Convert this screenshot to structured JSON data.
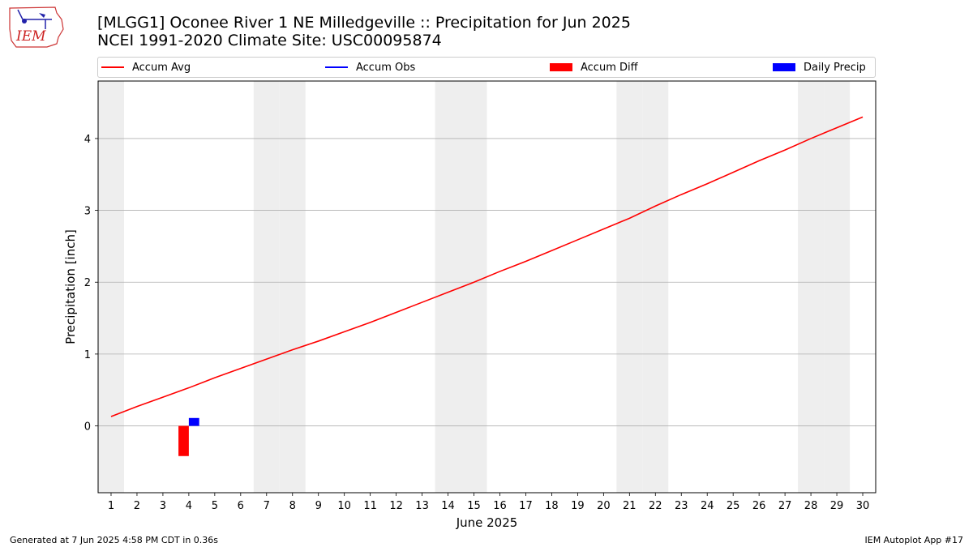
{
  "header": {
    "title_line1": "[MLGG1] Oconee River 1 NE Milledgeville :: Precipitation for Jun 2025",
    "title_line2": "NCEI 1991-2020 Climate Site: USC00095874"
  },
  "logo": {
    "text": "IEM"
  },
  "footer": {
    "generated": "Generated at 7 Jun 2025 4:58 PM CDT in 0.36s",
    "app": "IEM Autoplot App #17"
  },
  "chart_data": {
    "type": "line",
    "xlabel": "June 2025",
    "ylabel": "Precipitation [inch]",
    "x": [
      1,
      2,
      3,
      4,
      5,
      6,
      7,
      8,
      9,
      10,
      11,
      12,
      13,
      14,
      15,
      16,
      17,
      18,
      19,
      20,
      21,
      22,
      23,
      24,
      25,
      26,
      27,
      28,
      29,
      30
    ],
    "xlim": [
      0.5,
      30.5
    ],
    "ylim": [
      -0.93,
      4.8
    ],
    "yticks": [
      0,
      1,
      2,
      3,
      4
    ],
    "grid": "y",
    "legend_position": "top",
    "weekend_shading_days": [
      1,
      7,
      8,
      14,
      15,
      21,
      22,
      28,
      29
    ],
    "series": [
      {
        "name": "Accum Avg",
        "kind": "line",
        "color": "#ff0000",
        "x": [
          1,
          2,
          3,
          4,
          5,
          6,
          7,
          8,
          9,
          10,
          11,
          12,
          13,
          14,
          15,
          16,
          17,
          18,
          19,
          20,
          21,
          22,
          23,
          24,
          25,
          26,
          27,
          28,
          29,
          30
        ],
        "values": [
          0.13,
          0.27,
          0.4,
          0.53,
          0.67,
          0.8,
          0.93,
          1.06,
          1.18,
          1.31,
          1.44,
          1.58,
          1.72,
          1.86,
          2.0,
          2.15,
          2.29,
          2.44,
          2.59,
          2.74,
          2.89,
          3.06,
          3.22,
          3.37,
          3.53,
          3.69,
          3.84,
          4.0,
          4.15,
          4.3
        ]
      },
      {
        "name": "Accum Obs",
        "kind": "line",
        "color": "#0000ff",
        "x": [],
        "values": []
      },
      {
        "name": "Accum Diff",
        "kind": "bar",
        "color": "#ff0000",
        "x": [
          4
        ],
        "values": [
          -0.42
        ]
      },
      {
        "name": "Daily Precip",
        "kind": "bar",
        "color": "#0000ff",
        "x": [
          4
        ],
        "values": [
          0.11
        ]
      }
    ]
  }
}
